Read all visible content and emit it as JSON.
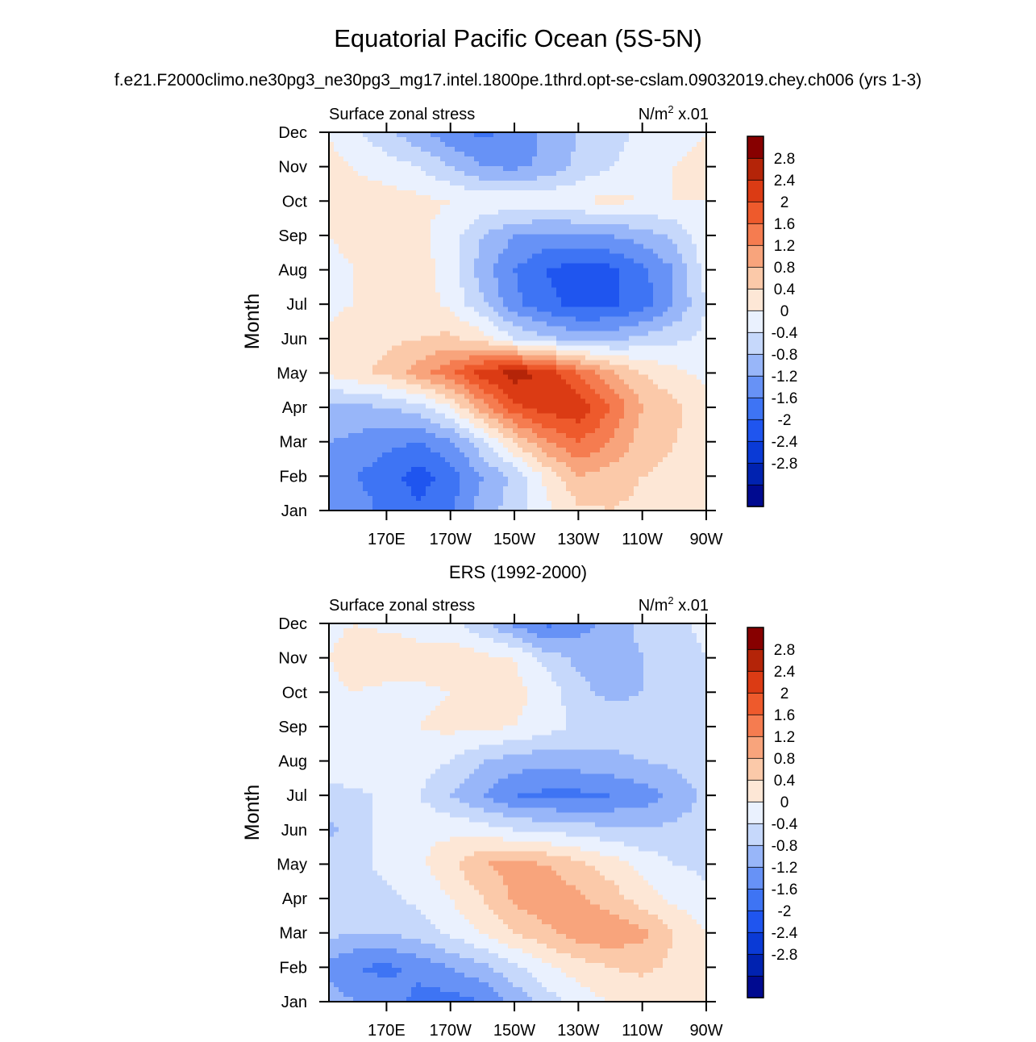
{
  "page_title": "Equatorial Pacific Ocean (5S-5N)",
  "case_name": "f.e21.F2000climo.ne30pg3_ne30pg3_mg17.intel.1800pe.1thrd.opt-se-cslam.09032019.chey.ch006 (yrs 1-3)",
  "ers_title": "ERS (1992-2000)",
  "colors": {
    "levels": [
      -3.2,
      -2.8,
      -2.4,
      -2.0,
      -1.6,
      -1.2,
      -0.8,
      -0.4,
      0,
      0.4,
      0.8,
      1.2,
      1.6,
      2.0,
      2.4,
      2.8,
      3.2
    ],
    "palette": [
      "#000a90",
      "#0022b0",
      "#0a3ad6",
      "#1f55ef",
      "#3e74f4",
      "#6792f6",
      "#98b6f9",
      "#c6d8fb",
      "#eaf1fe",
      "#fde7d6",
      "#fbc9a9",
      "#f8a47c",
      "#f57c50",
      "#ee5a2c",
      "#db3b14",
      "#b42408",
      "#870000"
    ]
  },
  "chart_data": [
    {
      "type": "heatmap",
      "name": "model",
      "left_label": "Surface zonal stress",
      "right_label": "N/m",
      "right_label_sup": "2",
      "right_label_scale": " x.01",
      "ylabel": "Month",
      "xlabel": "",
      "xlim": [
        152,
        270
      ],
      "x_ticks": [
        170,
        190,
        210,
        230,
        250,
        270
      ],
      "x_tick_labels": [
        "170E",
        "170W",
        "150W",
        "130W",
        "110W",
        "90W"
      ],
      "y_tick_labels": [
        "Jan",
        "Feb",
        "Mar",
        "Apr",
        "May",
        "Jun",
        "Jul",
        "Aug",
        "Sep",
        "Oct",
        "Nov",
        "Dec"
      ],
      "colorbar_labels": [
        "2.8",
        "2.4",
        "2",
        "1.6",
        "1.2",
        "0.8",
        "0.4",
        "0",
        "-0.4",
        "-0.8",
        "-1.2",
        "-1.6",
        "-2",
        "-2.4",
        "-2.8"
      ],
      "x": [
        152,
        160,
        170,
        180,
        190,
        200,
        210,
        220,
        230,
        240,
        250,
        260,
        270
      ],
      "months": [
        "Jan",
        "Feb",
        "Mar",
        "Apr",
        "May",
        "Jun",
        "Jul",
        "Aug",
        "Sep",
        "Oct",
        "Nov",
        "Dec"
      ],
      "values": [
        [
          -0.8,
          -1.0,
          -1.3,
          -1.5,
          -1.3,
          -0.6,
          -0.2,
          0.3,
          0.7,
          0.8,
          0.7,
          0.6,
          0.5
        ],
        [
          -1.0,
          -1.2,
          -1.4,
          -1.8,
          -1.4,
          -0.8,
          -0.3,
          0.5,
          1.2,
          1.0,
          0.8,
          0.7,
          0.6
        ],
        [
          -0.8,
          -0.9,
          -1.1,
          -1.2,
          -0.9,
          -0.1,
          0.8,
          1.6,
          2.0,
          1.6,
          1.0,
          0.8,
          0.6
        ],
        [
          -0.5,
          -0.5,
          -0.4,
          -0.2,
          0.4,
          1.4,
          2.3,
          2.6,
          2.7,
          2.0,
          1.2,
          0.9,
          0.6
        ],
        [
          0.5,
          0.7,
          0.9,
          1.4,
          1.9,
          2.6,
          3.0,
          2.7,
          2.0,
          1.3,
          0.8,
          0.5,
          0.3
        ],
        [
          0.5,
          0.7,
          0.7,
          0.8,
          0.9,
          0.6,
          0.0,
          -0.3,
          -0.6,
          -0.5,
          -0.3,
          -0.1,
          0.1
        ],
        [
          0.3,
          0.4,
          0.5,
          0.6,
          0.3,
          -0.3,
          -1.1,
          -1.5,
          -1.7,
          -1.7,
          -1.4,
          -0.8,
          0.0
        ],
        [
          0.3,
          0.4,
          0.5,
          0.6,
          0.2,
          -0.6,
          -1.2,
          -1.6,
          -1.8,
          -1.7,
          -1.3,
          -0.8,
          0.2
        ],
        [
          0.4,
          0.5,
          0.6,
          0.5,
          0.2,
          -0.4,
          -0.8,
          -0.9,
          -0.9,
          -0.8,
          -0.6,
          -0.3,
          0.3
        ],
        [
          0.4,
          0.5,
          0.6,
          0.5,
          0.4,
          0.3,
          0.3,
          0.3,
          0.4,
          0.5,
          0.4,
          0.4,
          0.4
        ],
        [
          0.5,
          0.4,
          0.2,
          0.0,
          -0.4,
          -0.8,
          -0.9,
          -0.7,
          -0.3,
          0.0,
          0.2,
          0.4,
          0.5
        ],
        [
          0.4,
          0.1,
          -0.3,
          -0.7,
          -1.1,
          -1.3,
          -1.1,
          -0.7,
          -0.4,
          -0.2,
          0.1,
          0.3,
          0.4
        ]
      ]
    },
    {
      "type": "heatmap",
      "name": "ers",
      "left_label": "Surface zonal stress",
      "right_label": "N/m",
      "right_label_sup": "2",
      "right_label_scale": " x.01",
      "ylabel": "Month",
      "xlabel": "",
      "xlim": [
        152,
        270
      ],
      "x_ticks": [
        170,
        190,
        210,
        230,
        250,
        270
      ],
      "x_tick_labels": [
        "170E",
        "170W",
        "150W",
        "130W",
        "110W",
        "90W"
      ],
      "y_tick_labels": [
        "Jan",
        "Feb",
        "Mar",
        "Apr",
        "May",
        "Jun",
        "Jul",
        "Aug",
        "Sep",
        "Oct",
        "Nov",
        "Dec"
      ],
      "colorbar_labels": [
        "2.8",
        "2.4",
        "2",
        "1.6",
        "1.2",
        "0.8",
        "0.4",
        "0",
        "-0.4",
        "-0.8",
        "-1.2",
        "-1.6",
        "-2",
        "-2.4",
        "-2.8"
      ],
      "x": [
        152,
        160,
        170,
        180,
        190,
        200,
        210,
        220,
        230,
        240,
        250,
        260,
        270
      ],
      "months": [
        "Jan",
        "Feb",
        "Mar",
        "Apr",
        "May",
        "Jun",
        "Jul",
        "Aug",
        "Sep",
        "Oct",
        "Nov",
        "Dec"
      ],
      "values": [
        [
          -0.6,
          -0.8,
          -1.0,
          -1.3,
          -1.4,
          -1.2,
          -0.7,
          -0.2,
          0.2,
          0.4,
          0.5,
          0.6,
          0.5
        ],
        [
          -0.9,
          -1.2,
          -1.3,
          -1.1,
          -0.8,
          -0.5,
          -0.1,
          0.3,
          0.6,
          0.8,
          0.9,
          0.7,
          0.5
        ],
        [
          -0.3,
          -0.4,
          -0.4,
          -0.2,
          0.1,
          0.4,
          0.8,
          1.1,
          1.4,
          1.5,
          1.3,
          0.8,
          0.4
        ],
        [
          -0.1,
          -0.2,
          -0.1,
          0.1,
          0.4,
          0.8,
          1.3,
          1.5,
          1.3,
          1.0,
          0.6,
          0.3,
          0.1
        ],
        [
          -0.2,
          -0.1,
          0.1,
          0.3,
          0.7,
          1.2,
          1.3,
          1.2,
          0.9,
          0.6,
          0.3,
          0.0,
          -0.1
        ],
        [
          -0.5,
          -0.2,
          0.2,
          0.3,
          0.3,
          0.2,
          0.0,
          -0.1,
          -0.2,
          -0.3,
          -0.4,
          -0.3,
          -0.2
        ],
        [
          -0.1,
          -0.1,
          0.1,
          0.0,
          -0.4,
          -0.8,
          -1.2,
          -1.3,
          -1.3,
          -1.2,
          -1.0,
          -0.7,
          -0.3
        ],
        [
          0.2,
          0.3,
          0.3,
          0.2,
          0.0,
          -0.4,
          -0.6,
          -0.7,
          -0.6,
          -0.5,
          -0.4,
          -0.3,
          -0.1
        ],
        [
          0.2,
          0.3,
          0.3,
          0.4,
          0.5,
          0.5,
          0.4,
          0.2,
          -0.1,
          -0.2,
          -0.2,
          -0.1,
          0.0
        ],
        [
          0.3,
          0.4,
          0.3,
          0.3,
          0.4,
          0.5,
          0.5,
          0.3,
          -0.3,
          -0.5,
          -0.4,
          -0.2,
          0.0
        ],
        [
          0.4,
          0.6,
          0.7,
          0.6,
          0.7,
          0.5,
          0.4,
          -0.2,
          -0.5,
          -0.6,
          -0.4,
          -0.2,
          0.0
        ],
        [
          0.3,
          0.4,
          0.3,
          0.2,
          0.1,
          -0.3,
          -0.9,
          -1.3,
          -1.0,
          -0.6,
          -0.3,
          -0.1,
          0.1
        ]
      ]
    }
  ]
}
